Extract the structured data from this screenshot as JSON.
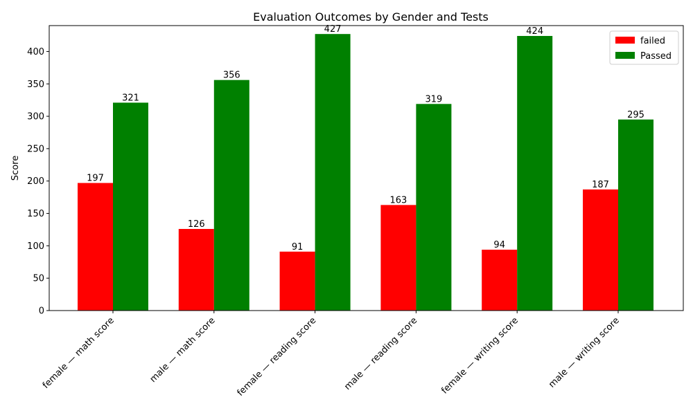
{
  "chart_data": {
    "type": "bar",
    "title": "Evaluation Outcomes by Gender and Tests",
    "xlabel": "",
    "ylabel": "Score",
    "ylim": [
      0,
      440
    ],
    "yticks": [
      0,
      50,
      100,
      150,
      200,
      250,
      300,
      350,
      400
    ],
    "categories": [
      "female — math score",
      "male — math score",
      "female — reading score",
      "male — reading score",
      "female — writing score",
      "male — writing score"
    ],
    "series": [
      {
        "name": "failed",
        "color": "#ff0000",
        "values": [
          197,
          126,
          91,
          163,
          94,
          187
        ]
      },
      {
        "name": "Passed",
        "color": "#008000",
        "values": [
          321,
          356,
          427,
          319,
          424,
          295
        ]
      }
    ],
    "legend_position": "top-right",
    "grid": false
  }
}
